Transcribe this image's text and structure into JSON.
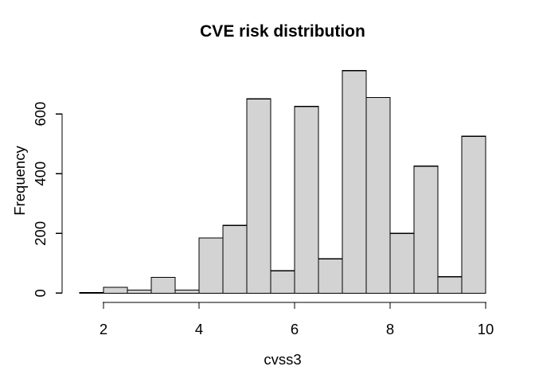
{
  "window": {
    "background": "#ffffff"
  },
  "chart_data": {
    "type": "bar",
    "subtype": "histogram",
    "title": "CVE risk distribution",
    "xlabel": "cvss3",
    "ylabel": "Frequency",
    "bin_edges": [
      1.5,
      2.0,
      2.5,
      3.0,
      3.5,
      4.0,
      4.5,
      5.0,
      5.5,
      6.0,
      6.5,
      7.0,
      7.5,
      8.0,
      8.5,
      9.0,
      9.5,
      10.0
    ],
    "frequencies": [
      2,
      20,
      10,
      53,
      10,
      185,
      227,
      650,
      75,
      625,
      115,
      745,
      655,
      200,
      425,
      55,
      525
    ],
    "x_ticks": [
      "2",
      "4",
      "6",
      "8",
      "10"
    ],
    "x_tick_values": [
      2,
      4,
      6,
      8,
      10
    ],
    "y_ticks": [
      "0",
      "200",
      "400",
      "600"
    ],
    "y_tick_values": [
      0,
      200,
      400,
      600
    ],
    "xlim": [
      1.5,
      10
    ],
    "ylim": [
      0,
      760
    ],
    "grid": false,
    "legend_position": "none",
    "bar_fill": "#d3d3d3",
    "bar_stroke": "#000000",
    "axis_color": "#000000",
    "text_color": "#000000"
  }
}
